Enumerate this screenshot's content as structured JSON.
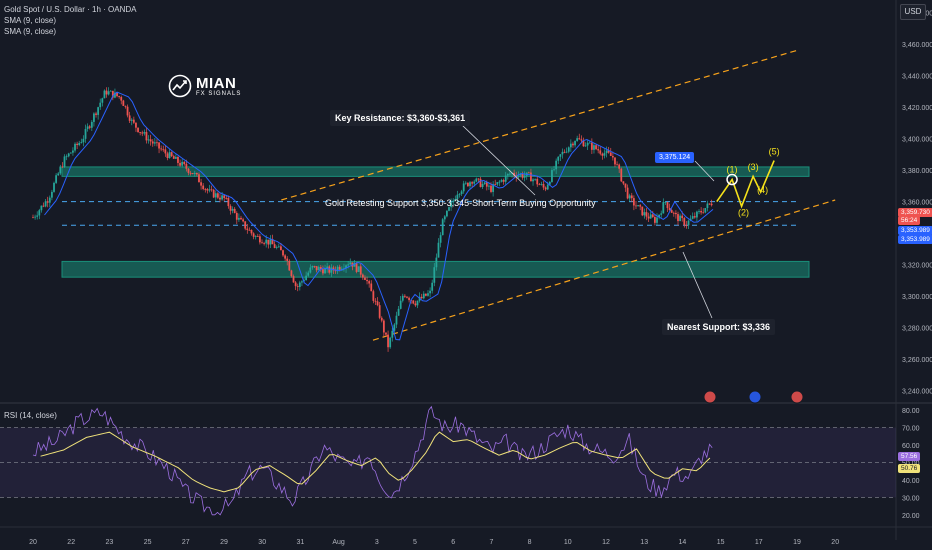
{
  "header": {
    "symbol_line": "Gold Spot / U.S. Dollar · 1h · OANDA",
    "sma_lines": [
      "SMA (9, close)",
      "SMA (9, close)"
    ],
    "currency": "USD",
    "rsi_label": "RSI (14, close)"
  },
  "logo": {
    "name": "MIAN",
    "sub": "FX SIGNALS"
  },
  "annotations": {
    "key_resistance": "Key Resistance: $3,360-$3,361",
    "nearest_support": "Nearest Support: $3,336",
    "main_text": "Gold Retesting Support 3,350-3,345-Short-Term Buying Opportunity",
    "target_tag": "3,375.124",
    "waves": [
      "(1)",
      "(2)",
      "(3)",
      "(4)",
      "(5)"
    ]
  },
  "price_tags": {
    "current": "3,359.730",
    "countdown": "56:24",
    "sma_a": "3,353.989",
    "sma_b": "3,353.989",
    "rsi_a": "57.56",
    "rsi_b": "50.76"
  },
  "colors": {
    "background": "#161a25",
    "bull": "#26a69a",
    "bear": "#ef5350",
    "sma": "#2962ff",
    "channel": "#f7a21b",
    "zone": "#1a8f7a",
    "wave": "#f5e11b",
    "rsi": "#9c6fe0",
    "rsi_ma": "#f0e27a"
  },
  "chart_data": {
    "type": "candlestick",
    "title": "Gold Spot / U.S. Dollar · 1h · OANDA",
    "price_axis": {
      "ticks": [
        3480,
        3460,
        3440,
        3420,
        3400,
        3380,
        3360,
        3340,
        3320,
        3300,
        3280,
        3260,
        3240
      ],
      "labels": [
        "3,480.000",
        "3,460.000",
        "3,440.000",
        "3,420.000",
        "3,400.000",
        "3,380.000",
        "3,360.000",
        "3,340.000",
        "3,320.000",
        "3,300.000",
        "3,280.000",
        "3,260.000",
        "3,240.000"
      ],
      "range": [
        3234,
        3488
      ]
    },
    "rsi_axis": {
      "ticks": [
        80,
        70,
        60,
        50,
        40,
        30,
        20
      ],
      "labels": [
        "80.00",
        "70.00",
        "60.00",
        "50.00",
        "40.00",
        "30.00",
        "20.00"
      ],
      "range": [
        17,
        83
      ],
      "bands": [
        70,
        50,
        30
      ]
    },
    "time_axis": {
      "labels": [
        "20",
        "22",
        "23",
        "25",
        "27",
        "29",
        "30",
        "31",
        "Aug",
        "3",
        "5",
        "6",
        "7",
        "8",
        "10",
        "12",
        "13",
        "14",
        "15",
        "17",
        "19",
        "20"
      ]
    },
    "price_path": [
      [
        0,
        3350
      ],
      [
        0.4,
        3362
      ],
      [
        0.8,
        3386
      ],
      [
        1.3,
        3400
      ],
      [
        1.9,
        3430
      ],
      [
        2.3,
        3426
      ],
      [
        2.6,
        3410
      ],
      [
        3.0,
        3400
      ],
      [
        3.4,
        3392
      ],
      [
        3.8,
        3385
      ],
      [
        4.2,
        3378
      ],
      [
        4.6,
        3366
      ],
      [
        5.0,
        3362
      ],
      [
        5.4,
        3348
      ],
      [
        5.8,
        3338
      ],
      [
        6.2,
        3334
      ],
      [
        6.6,
        3326
      ],
      [
        6.9,
        3305
      ],
      [
        7.3,
        3318
      ],
      [
        7.8,
        3316
      ],
      [
        8.3,
        3322
      ],
      [
        8.7,
        3312
      ],
      [
        9.05,
        3290
      ],
      [
        9.3,
        3268
      ],
      [
        9.7,
        3302
      ],
      [
        10.0,
        3296
      ],
      [
        10.4,
        3302
      ],
      [
        10.7,
        3345
      ],
      [
        11.1,
        3366
      ],
      [
        11.5,
        3374
      ],
      [
        12.0,
        3368
      ],
      [
        12.5,
        3378
      ],
      [
        13.0,
        3376
      ],
      [
        13.4,
        3368
      ],
      [
        13.8,
        3389
      ],
      [
        14.2,
        3400
      ],
      [
        14.7,
        3394
      ],
      [
        15.2,
        3388
      ],
      [
        15.6,
        3362
      ],
      [
        16.0,
        3352
      ],
      [
        16.3,
        3348
      ],
      [
        16.55,
        3360
      ],
      [
        16.8,
        3351
      ],
      [
        17.1,
        3346
      ],
      [
        17.5,
        3354
      ],
      [
        17.8,
        3360
      ]
    ],
    "rsi_path": [
      [
        0,
        56
      ],
      [
        0.6,
        62
      ],
      [
        1.2,
        74
      ],
      [
        1.8,
        79
      ],
      [
        2.4,
        65
      ],
      [
        3.0,
        56
      ],
      [
        3.6,
        45
      ],
      [
        4.0,
        33
      ],
      [
        4.4,
        26
      ],
      [
        4.8,
        22
      ],
      [
        5.2,
        26
      ],
      [
        5.6,
        43
      ],
      [
        6.0,
        47
      ],
      [
        6.4,
        38
      ],
      [
        6.8,
        28
      ],
      [
        7.2,
        42
      ],
      [
        7.6,
        59
      ],
      [
        8.0,
        52
      ],
      [
        8.4,
        47
      ],
      [
        8.8,
        55
      ],
      [
        9.1,
        40
      ],
      [
        9.4,
        32
      ],
      [
        9.7,
        42
      ],
      [
        10.1,
        60
      ],
      [
        10.4,
        80
      ],
      [
        10.8,
        70
      ],
      [
        11.2,
        72
      ],
      [
        11.6,
        64
      ],
      [
        12.0,
        57
      ],
      [
        12.4,
        62
      ],
      [
        12.8,
        53
      ],
      [
        13.2,
        57
      ],
      [
        13.6,
        64
      ],
      [
        14.0,
        70
      ],
      [
        14.4,
        61
      ],
      [
        14.8,
        57
      ],
      [
        15.2,
        54
      ],
      [
        15.6,
        63
      ],
      [
        16.0,
        40
      ],
      [
        16.4,
        34
      ],
      [
        16.8,
        44
      ],
      [
        17.2,
        42
      ],
      [
        17.5,
        54
      ],
      [
        17.8,
        58
      ]
    ],
    "zones": [
      [
        3376,
        3382
      ],
      [
        3312,
        3322
      ]
    ],
    "levels": [
      3360,
      3345
    ],
    "channel": {
      "upper": [
        [
          6.5,
          3361
        ],
        [
          20,
          3456
        ]
      ],
      "lower": [
        [
          8.9,
          3272
        ],
        [
          21,
          3361
        ]
      ]
    },
    "projection": [
      [
        17.9,
        3360
      ],
      [
        18.3,
        3374
      ],
      [
        18.55,
        3357
      ],
      [
        18.85,
        3376
      ],
      [
        19.05,
        3366
      ],
      [
        19.4,
        3386
      ]
    ]
  }
}
